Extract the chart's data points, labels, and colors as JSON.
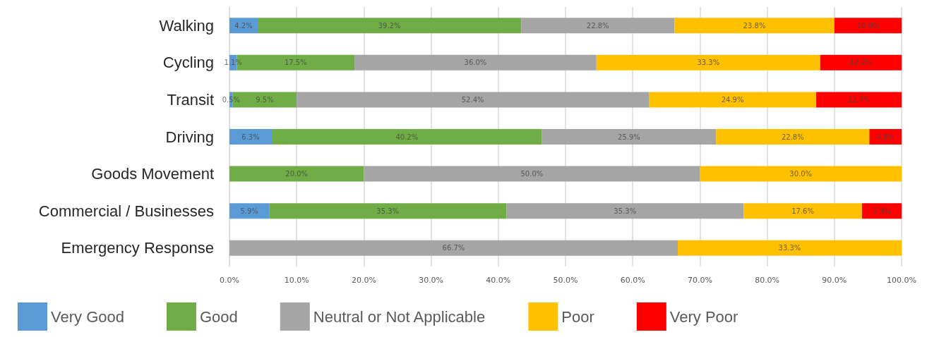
{
  "chart_data": {
    "type": "bar",
    "orientation": "horizontal",
    "stacked": true,
    "categories": [
      "Walking",
      "Cycling",
      "Transit",
      "Driving",
      "Goods Movement",
      "Commercial / Businesses",
      "Emergency Response"
    ],
    "series": [
      {
        "name": "Very Good",
        "color": "#5b9bd5",
        "values": [
          4.2,
          1.1,
          0.5,
          6.3,
          0,
          5.9,
          0
        ],
        "value_labels": [
          "4.2%",
          "1.1%",
          "0.5%",
          "6.3%",
          null,
          "5.9%",
          null
        ]
      },
      {
        "name": "Good",
        "color": "#70ad47",
        "values": [
          39.2,
          17.5,
          9.5,
          40.2,
          20.0,
          35.3,
          0
        ],
        "value_labels": [
          "39.2%",
          "17.5%",
          "9.5%",
          "40.2%",
          "20.0%",
          "35.3%",
          null
        ]
      },
      {
        "name": "Neutral or Not Applicable",
        "color": "#a5a5a5",
        "values": [
          22.8,
          36.0,
          52.4,
          25.9,
          50.0,
          35.3,
          66.7
        ],
        "value_labels": [
          "22.8%",
          "36.0%",
          "52.4%",
          "25.9%",
          "50.0%",
          "35.3%",
          "66.7%"
        ]
      },
      {
        "name": "Poor",
        "color": "#ffc000",
        "values": [
          23.8,
          33.3,
          24.9,
          22.8,
          30.0,
          17.6,
          33.3
        ],
        "value_labels": [
          "23.8%",
          "33.3%",
          "24.9%",
          "22.8%",
          "30.0%",
          "17.6%",
          "33.3%"
        ]
      },
      {
        "name": "Very Poor",
        "color": "#ff0000",
        "values": [
          10.0,
          12.2,
          12.7,
          4.8,
          0,
          5.9,
          0
        ],
        "value_labels": [
          "10.0%",
          "12.2%",
          "12.7%",
          "4.8%",
          null,
          "5.9%",
          null
        ]
      }
    ],
    "xlim": [
      0,
      100
    ],
    "xticks": [
      {
        "value": 0,
        "label": "0.0%"
      },
      {
        "value": 10,
        "label": "10.0%"
      },
      {
        "value": 20,
        "label": "20.0%"
      },
      {
        "value": 30,
        "label": "30.0%"
      },
      {
        "value": 40,
        "label": "40.0%"
      },
      {
        "value": 50,
        "label": "50.0%"
      },
      {
        "value": 60,
        "label": "60.0%"
      },
      {
        "value": 70,
        "label": "70.0%"
      },
      {
        "value": 80,
        "label": "80.0%"
      },
      {
        "value": 90,
        "label": "90.0%"
      },
      {
        "value": 100,
        "label": "100.0%"
      }
    ],
    "grid": "x",
    "legend": "bottom"
  }
}
